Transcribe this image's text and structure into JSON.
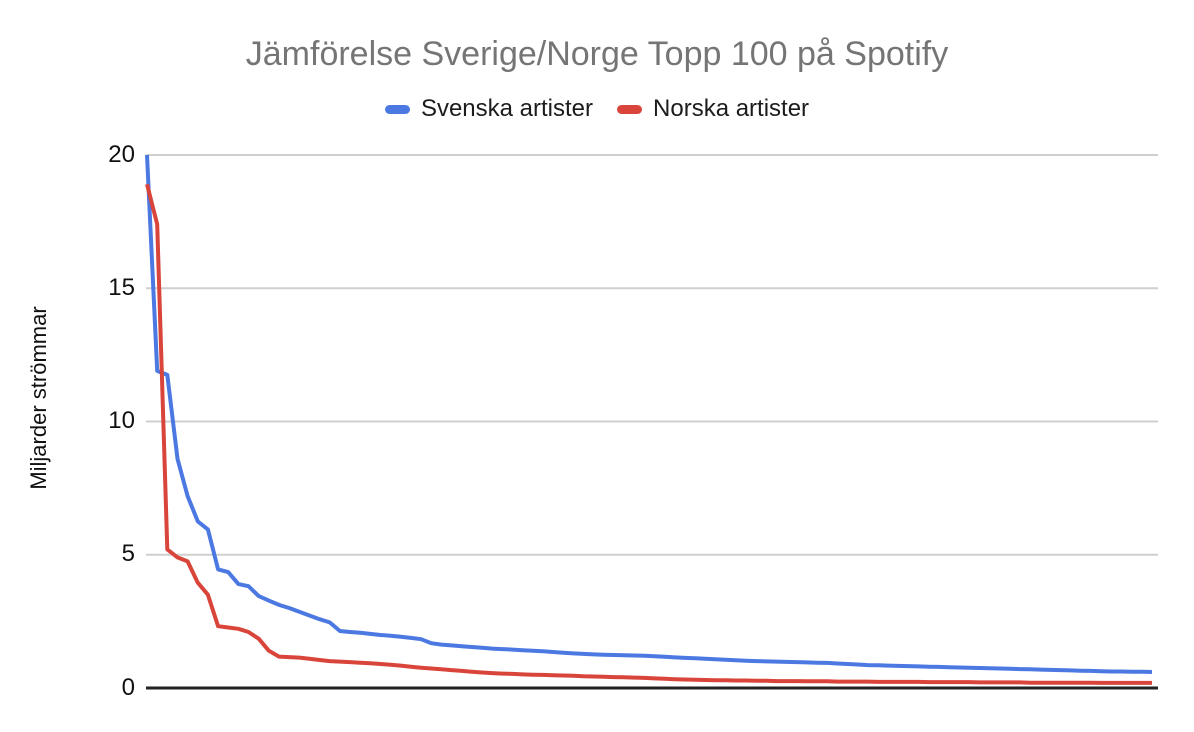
{
  "title": "Jämförelse Sverige/Norge Topp 100 på Spotify",
  "legend": {
    "items": [
      {
        "label": "Svenska artister",
        "color": "#4c78e2"
      },
      {
        "label": "Norska artister",
        "color": "#d9453a"
      }
    ]
  },
  "y_axis": {
    "title": "Miljarder strömmar",
    "tick_labels": [
      "20",
      "15",
      "10",
      "5",
      "0"
    ]
  },
  "chart_data": {
    "type": "line",
    "title": "Jämförelse Sverige/Norge Topp 100 på Spotify",
    "xlabel": "",
    "ylabel": "Miljarder strömmar",
    "ylim": [
      0,
      20
    ],
    "yticks": [
      0,
      5,
      10,
      15,
      20
    ],
    "x_range": "rank 1-100 (no x tick labels shown)",
    "grid": true,
    "legend_position": "top",
    "background": "#ffffff",
    "gridline_color": "#cfcfcf",
    "title_color": "#757575",
    "series": [
      {
        "name": "Svenska artister",
        "color": "#4c78e2",
        "values": [
          20,
          11.9,
          11.75,
          8.6,
          7.2,
          6.25,
          5.95,
          4.45,
          4.35,
          3.9,
          3.82,
          3.45,
          3.28,
          3.12,
          3.0,
          2.86,
          2.72,
          2.58,
          2.46,
          2.14,
          2.1,
          2.07,
          2.03,
          1.99,
          1.96,
          1.92,
          1.88,
          1.83,
          1.68,
          1.63,
          1.6,
          1.57,
          1.54,
          1.51,
          1.48,
          1.46,
          1.44,
          1.42,
          1.4,
          1.38,
          1.35,
          1.32,
          1.3,
          1.28,
          1.26,
          1.25,
          1.24,
          1.23,
          1.22,
          1.21,
          1.19,
          1.17,
          1.15,
          1.13,
          1.12,
          1.1,
          1.08,
          1.06,
          1.04,
          1.02,
          1.01,
          1.0,
          0.99,
          0.98,
          0.97,
          0.96,
          0.95,
          0.94,
          0.92,
          0.9,
          0.88,
          0.86,
          0.85,
          0.84,
          0.83,
          0.82,
          0.81,
          0.8,
          0.79,
          0.78,
          0.77,
          0.76,
          0.75,
          0.74,
          0.73,
          0.72,
          0.71,
          0.7,
          0.69,
          0.68,
          0.67,
          0.66,
          0.65,
          0.64,
          0.63,
          0.62,
          0.62,
          0.61,
          0.61,
          0.6
        ]
      },
      {
        "name": "Norska artister",
        "color": "#d9453a",
        "values": [
          18.9,
          17.4,
          5.2,
          4.9,
          4.75,
          3.95,
          3.5,
          2.32,
          2.27,
          2.22,
          2.1,
          1.85,
          1.4,
          1.18,
          1.16,
          1.14,
          1.1,
          1.05,
          1.01,
          0.99,
          0.97,
          0.95,
          0.93,
          0.9,
          0.87,
          0.84,
          0.8,
          0.76,
          0.73,
          0.7,
          0.67,
          0.64,
          0.61,
          0.58,
          0.56,
          0.54,
          0.53,
          0.51,
          0.5,
          0.49,
          0.48,
          0.47,
          0.46,
          0.44,
          0.43,
          0.42,
          0.41,
          0.4,
          0.39,
          0.38,
          0.36,
          0.35,
          0.33,
          0.32,
          0.31,
          0.3,
          0.29,
          0.29,
          0.28,
          0.28,
          0.27,
          0.27,
          0.26,
          0.26,
          0.26,
          0.25,
          0.25,
          0.25,
          0.24,
          0.24,
          0.24,
          0.24,
          0.23,
          0.23,
          0.23,
          0.23,
          0.23,
          0.22,
          0.22,
          0.22,
          0.22,
          0.22,
          0.21,
          0.21,
          0.21,
          0.21,
          0.21,
          0.2,
          0.2,
          0.2,
          0.2,
          0.2,
          0.2,
          0.2,
          0.19,
          0.19,
          0.19,
          0.19,
          0.19,
          0.19
        ]
      }
    ]
  }
}
